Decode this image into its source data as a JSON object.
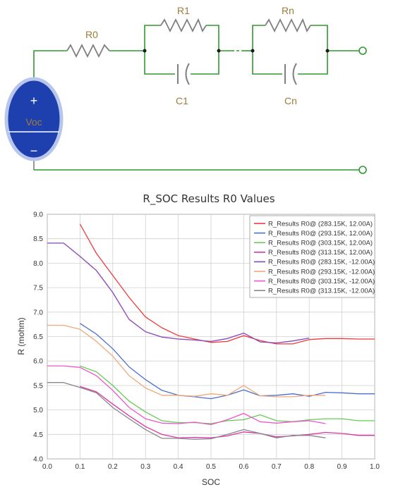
{
  "circuit": {
    "labels": {
      "r0": "R0",
      "r1": "R1",
      "c1": "C1",
      "rn": "Rn",
      "cn": "Cn",
      "voc": "Voc",
      "plus": "+",
      "minus": "−"
    },
    "colors": {
      "wire": "#2e9a2e",
      "bottom_wire": "#7f7f7f",
      "resistor": "#7f7f7f",
      "source": "#1e3fae",
      "text": "#9b7d3a"
    }
  },
  "chart_data": {
    "type": "line",
    "title": "R_SOC Results R0 Values",
    "xlabel": "SOC",
    "ylabel": "R (mohm)",
    "xlim": [
      0,
      1
    ],
    "ylim": [
      4,
      9
    ],
    "xticks": [
      "0.0",
      "0.1",
      "0.2",
      "0.3",
      "0.4",
      "0.5",
      "0.6",
      "0.7",
      "0.8",
      "0.9",
      "1.0"
    ],
    "yticks": [
      "4.0",
      "4.5",
      "5.0",
      "5.5",
      "6.0",
      "6.5",
      "7.0",
      "7.5",
      "8.0",
      "8.5",
      "9.0"
    ],
    "grid": true,
    "legend": "top-right",
    "series": [
      {
        "name": "R_Results R0@ (283.15K,  12.00A)",
        "color": "#ee3b3b",
        "x": [
          0.1,
          0.15,
          0.2,
          0.25,
          0.3,
          0.35,
          0.4,
          0.45,
          0.5,
          0.55,
          0.6,
          0.65,
          0.7,
          0.75,
          0.8,
          0.85,
          0.9,
          0.95,
          1.0
        ],
        "y": [
          8.8,
          8.2,
          7.75,
          7.3,
          6.9,
          6.68,
          6.52,
          6.45,
          6.38,
          6.4,
          6.52,
          6.42,
          6.35,
          6.35,
          6.44,
          6.46,
          6.46,
          6.45,
          6.45
        ]
      },
      {
        "name": "R_Results R0@ (293.15K,  12.00A)",
        "color": "#4a6fd0",
        "x": [
          0.1,
          0.15,
          0.2,
          0.25,
          0.3,
          0.35,
          0.4,
          0.45,
          0.5,
          0.55,
          0.6,
          0.65,
          0.7,
          0.75,
          0.8,
          0.85,
          0.9,
          0.95,
          1.0
        ],
        "y": [
          6.77,
          6.55,
          6.25,
          5.88,
          5.62,
          5.4,
          5.3,
          5.27,
          5.23,
          5.3,
          5.41,
          5.29,
          5.3,
          5.33,
          5.28,
          5.36,
          5.35,
          5.33,
          5.33
        ]
      },
      {
        "name": "R_Results R0@ (303.15K,  12.00A)",
        "color": "#66cc55",
        "x": [
          0.1,
          0.15,
          0.2,
          0.25,
          0.3,
          0.35,
          0.4,
          0.45,
          0.5,
          0.55,
          0.6,
          0.65,
          0.7,
          0.75,
          0.8,
          0.85,
          0.9,
          0.95,
          1.0
        ],
        "y": [
          5.9,
          5.78,
          5.5,
          5.18,
          4.96,
          4.78,
          4.74,
          4.74,
          4.72,
          4.78,
          4.8,
          4.9,
          4.78,
          4.76,
          4.8,
          4.82,
          4.82,
          4.78,
          4.78
        ]
      },
      {
        "name": "R_Results R0@ (313.15K,  12.00A)",
        "color": "#dd33aa",
        "x": [
          0.1,
          0.15,
          0.2,
          0.25,
          0.3,
          0.35,
          0.4,
          0.45,
          0.5,
          0.55,
          0.6,
          0.65,
          0.7,
          0.75,
          0.8,
          0.85,
          0.9,
          0.95,
          1.0
        ],
        "y": [
          5.48,
          5.37,
          5.12,
          4.88,
          4.66,
          4.5,
          4.43,
          4.44,
          4.43,
          4.47,
          4.55,
          4.52,
          4.45,
          4.47,
          4.5,
          4.54,
          4.52,
          4.48,
          4.48
        ]
      },
      {
        "name": "R_Results R0@ (283.15K, -12.00A)",
        "color": "#8844bb",
        "x": [
          0.0,
          0.05,
          0.1,
          0.15,
          0.2,
          0.25,
          0.3,
          0.35,
          0.4,
          0.45,
          0.5,
          0.55,
          0.6,
          0.65,
          0.7,
          0.75,
          0.8
        ],
        "y": [
          8.41,
          8.41,
          8.14,
          7.85,
          7.4,
          6.85,
          6.6,
          6.49,
          6.45,
          6.43,
          6.4,
          6.46,
          6.57,
          6.39,
          6.37,
          6.41,
          6.47
        ]
      },
      {
        "name": "R_Results R0@ (293.15K, -12.00A)",
        "color": "#f0a878",
        "x": [
          0.0,
          0.05,
          0.1,
          0.15,
          0.2,
          0.25,
          0.3,
          0.35,
          0.4,
          0.45,
          0.5,
          0.55,
          0.6,
          0.65,
          0.7,
          0.75,
          0.8,
          0.85
        ],
        "y": [
          6.73,
          6.73,
          6.65,
          6.4,
          6.1,
          5.7,
          5.45,
          5.3,
          5.3,
          5.28,
          5.33,
          5.3,
          5.5,
          5.29,
          5.27,
          5.27,
          5.3,
          5.3
        ]
      },
      {
        "name": "R_Results R0@ (303.15K, -12.00A)",
        "color": "#ee55cc",
        "x": [
          0.0,
          0.05,
          0.1,
          0.15,
          0.2,
          0.25,
          0.3,
          0.35,
          0.4,
          0.45,
          0.5,
          0.55,
          0.6,
          0.65,
          0.7,
          0.75,
          0.8,
          0.85
        ],
        "y": [
          5.9,
          5.9,
          5.87,
          5.7,
          5.4,
          5.05,
          4.82,
          4.73,
          4.72,
          4.75,
          4.7,
          4.8,
          4.93,
          4.76,
          4.73,
          4.76,
          4.78,
          4.72
        ]
      },
      {
        "name": "R_Results R0@ (313.15K, -12.00A)",
        "color": "#888888",
        "x": [
          0.0,
          0.05,
          0.1,
          0.15,
          0.2,
          0.25,
          0.3,
          0.35,
          0.4,
          0.45,
          0.5,
          0.55,
          0.6,
          0.65,
          0.7,
          0.75,
          0.8,
          0.85
        ],
        "y": [
          5.56,
          5.56,
          5.46,
          5.35,
          5.05,
          4.82,
          4.6,
          4.42,
          4.42,
          4.4,
          4.41,
          4.5,
          4.6,
          4.52,
          4.43,
          4.48,
          4.48,
          4.43
        ]
      }
    ]
  }
}
